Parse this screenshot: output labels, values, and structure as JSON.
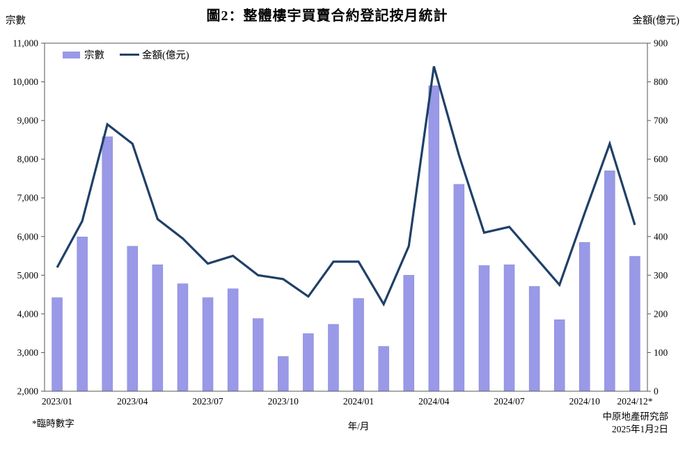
{
  "header": {
    "title": "圖2：整體樓宇買賣合約登記按月統計",
    "left_axis_title": "宗數",
    "right_axis_title": "金額(億元)"
  },
  "legend": {
    "bars_label": "宗數",
    "line_label": "金額(億元)"
  },
  "footer": {
    "note": "*臨時數字",
    "x_axis_title": "年/月",
    "source": "中原地產研究部",
    "date": "2025年1月2日"
  },
  "colors": {
    "bar": "#9999E8",
    "bar_border": "#8585D6",
    "line": "#1F4068",
    "axis": "#555555",
    "text": "#000000"
  },
  "chart_data": {
    "type": "bar",
    "subtype": "bar+line dual axis",
    "title": "圖2：整體樓宇買賣合約登記按月統計",
    "xlabel": "年/月",
    "categories": [
      "2023/01",
      "2023/02",
      "2023/03",
      "2023/04",
      "2023/05",
      "2023/06",
      "2023/07",
      "2023/08",
      "2023/09",
      "2023/10",
      "2023/11",
      "2023/12",
      "2024/01",
      "2024/02",
      "2024/03",
      "2024/04",
      "2024/05",
      "2024/06",
      "2024/07",
      "2024/08",
      "2024/09",
      "2024/10",
      "2024/11",
      "2024/12"
    ],
    "series": [
      {
        "name": "宗數",
        "type": "bar",
        "axis": "left",
        "values": [
          4420,
          5990,
          8580,
          5750,
          5270,
          4780,
          4420,
          4650,
          3880,
          2900,
          3490,
          3730,
          4400,
          3160,
          5000,
          9900,
          7350,
          5250,
          5270,
          4710,
          3850,
          5850,
          7700,
          5490
        ]
      },
      {
        "name": "金額(億元)",
        "type": "line",
        "axis": "right",
        "values": [
          320,
          440,
          690,
          640,
          445,
          395,
          330,
          350,
          300,
          290,
          245,
          335,
          335,
          225,
          375,
          840,
          610,
          410,
          425,
          350,
          275,
          460,
          640,
          430
        ]
      }
    ],
    "left_axis": {
      "min": 2000,
      "max": 11000,
      "step": 1000,
      "tick_labels": [
        "2,000",
        "3,000",
        "4,000",
        "5,000",
        "6,000",
        "7,000",
        "8,000",
        "9,000",
        "10,000",
        "11,000"
      ]
    },
    "right_axis": {
      "min": 0,
      "max": 900,
      "step": 100,
      "tick_labels": [
        "0",
        "100",
        "200",
        "300",
        "400",
        "500",
        "600",
        "700",
        "800",
        "900"
      ]
    },
    "x_tick_positions": [
      0,
      3,
      6,
      9,
      12,
      15,
      18,
      21,
      23
    ],
    "x_tick_labels": [
      "2023/01",
      "2023/04",
      "2023/07",
      "2023/10",
      "2024/01",
      "2024/04",
      "2024/07",
      "2024/10",
      "2024/12*"
    ],
    "grid": false,
    "legend_position": "top-left inside plot"
  }
}
